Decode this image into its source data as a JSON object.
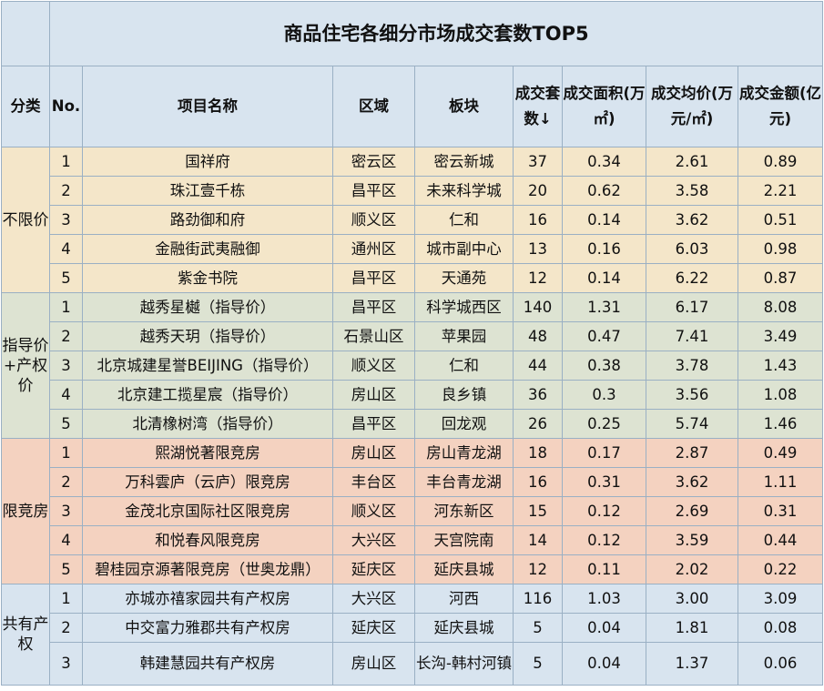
{
  "title": "商品住宅各细分市场成交套数TOP5",
  "headers": {
    "category": "分类",
    "no": "No.",
    "project": "项目名称",
    "district": "区域",
    "block": "板块",
    "units": "成交套数↓",
    "area": "成交面积(万㎡)",
    "avg_price": "成交均价(万元/㎡)",
    "amount": "成交金额(亿元)"
  },
  "groups": [
    {
      "name": "不限价",
      "rows": [
        {
          "no": "1",
          "project": "国祥府",
          "district": "密云区",
          "block": "密云新城",
          "units": "37",
          "area": "0.34",
          "avg_price": "2.61",
          "amount": "0.89"
        },
        {
          "no": "2",
          "project": "珠江壹千栋",
          "district": "昌平区",
          "block": "未来科学城",
          "units": "20",
          "area": "0.62",
          "avg_price": "3.58",
          "amount": "2.21"
        },
        {
          "no": "3",
          "project": "路劲御和府",
          "district": "顺义区",
          "block": "仁和",
          "units": "16",
          "area": "0.14",
          "avg_price": "3.62",
          "amount": "0.51"
        },
        {
          "no": "4",
          "project": "金融街武夷融御",
          "district": "通州区",
          "block": "城市副中心",
          "units": "13",
          "area": "0.16",
          "avg_price": "6.03",
          "amount": "0.98"
        },
        {
          "no": "5",
          "project": "紫金书院",
          "district": "昌平区",
          "block": "天通苑",
          "units": "12",
          "area": "0.14",
          "avg_price": "6.22",
          "amount": "0.87"
        }
      ]
    },
    {
      "name": "指导价+产权价",
      "rows": [
        {
          "no": "1",
          "project": "越秀星樾（指导价）",
          "district": "昌平区",
          "block": "科学城西区",
          "units": "140",
          "area": "1.31",
          "avg_price": "6.17",
          "amount": "8.08"
        },
        {
          "no": "2",
          "project": "越秀天玥（指导价）",
          "district": "石景山区",
          "block": "苹果园",
          "units": "48",
          "area": "0.47",
          "avg_price": "7.41",
          "amount": "3.49"
        },
        {
          "no": "3",
          "project": "北京城建星誉BEIJING（指导价）",
          "district": "顺义区",
          "block": "仁和",
          "units": "44",
          "area": "0.38",
          "avg_price": "3.78",
          "amount": "1.43"
        },
        {
          "no": "4",
          "project": "北京建工揽星宸（指导价）",
          "district": "房山区",
          "block": "良乡镇",
          "units": "36",
          "area": "0.3",
          "avg_price": "3.56",
          "amount": "1.08"
        },
        {
          "no": "5",
          "project": "北清橡树湾（指导价）",
          "district": "昌平区",
          "block": "回龙观",
          "units": "26",
          "area": "0.25",
          "avg_price": "5.74",
          "amount": "1.46"
        }
      ]
    },
    {
      "name": "限竞房",
      "rows": [
        {
          "no": "1",
          "project": "熙湖悦著限竞房",
          "district": "房山区",
          "block": "房山青龙湖",
          "units": "18",
          "area": "0.17",
          "avg_price": "2.87",
          "amount": "0.49"
        },
        {
          "no": "2",
          "project": "万科雲庐（云庐）限竞房",
          "district": "丰台区",
          "block": "丰台青龙湖",
          "units": "16",
          "area": "0.31",
          "avg_price": "3.62",
          "amount": "1.11"
        },
        {
          "no": "3",
          "project": "金茂北京国际社区限竞房",
          "district": "顺义区",
          "block": "河东新区",
          "units": "15",
          "area": "0.12",
          "avg_price": "2.69",
          "amount": "0.31"
        },
        {
          "no": "4",
          "project": "和悦春风限竞房",
          "district": "大兴区",
          "block": "天宫院南",
          "units": "14",
          "area": "0.12",
          "avg_price": "3.59",
          "amount": "0.44"
        },
        {
          "no": "5",
          "project": "碧桂园京源著限竞房（世奥龙鼎）",
          "district": "延庆区",
          "block": "延庆县城",
          "units": "12",
          "area": "0.11",
          "avg_price": "2.02",
          "amount": "0.22"
        }
      ]
    },
    {
      "name": "共有产权",
      "rows": [
        {
          "no": "1",
          "project": "亦城亦禧家园共有产权房",
          "district": "大兴区",
          "block": "河西",
          "units": "116",
          "area": "1.03",
          "avg_price": "3.00",
          "amount": "3.09"
        },
        {
          "no": "2",
          "project": "中交富力雅郡共有产权房",
          "district": "延庆区",
          "block": "延庆县城",
          "units": "5",
          "area": "0.04",
          "avg_price": "1.81",
          "amount": "0.08"
        },
        {
          "no": "3",
          "project": "韩建慧园共有产权房",
          "district": "房山区",
          "block": "长沟-韩村河镇",
          "units": "5",
          "area": "0.04",
          "avg_price": "1.37",
          "amount": "0.06"
        }
      ]
    }
  ]
}
